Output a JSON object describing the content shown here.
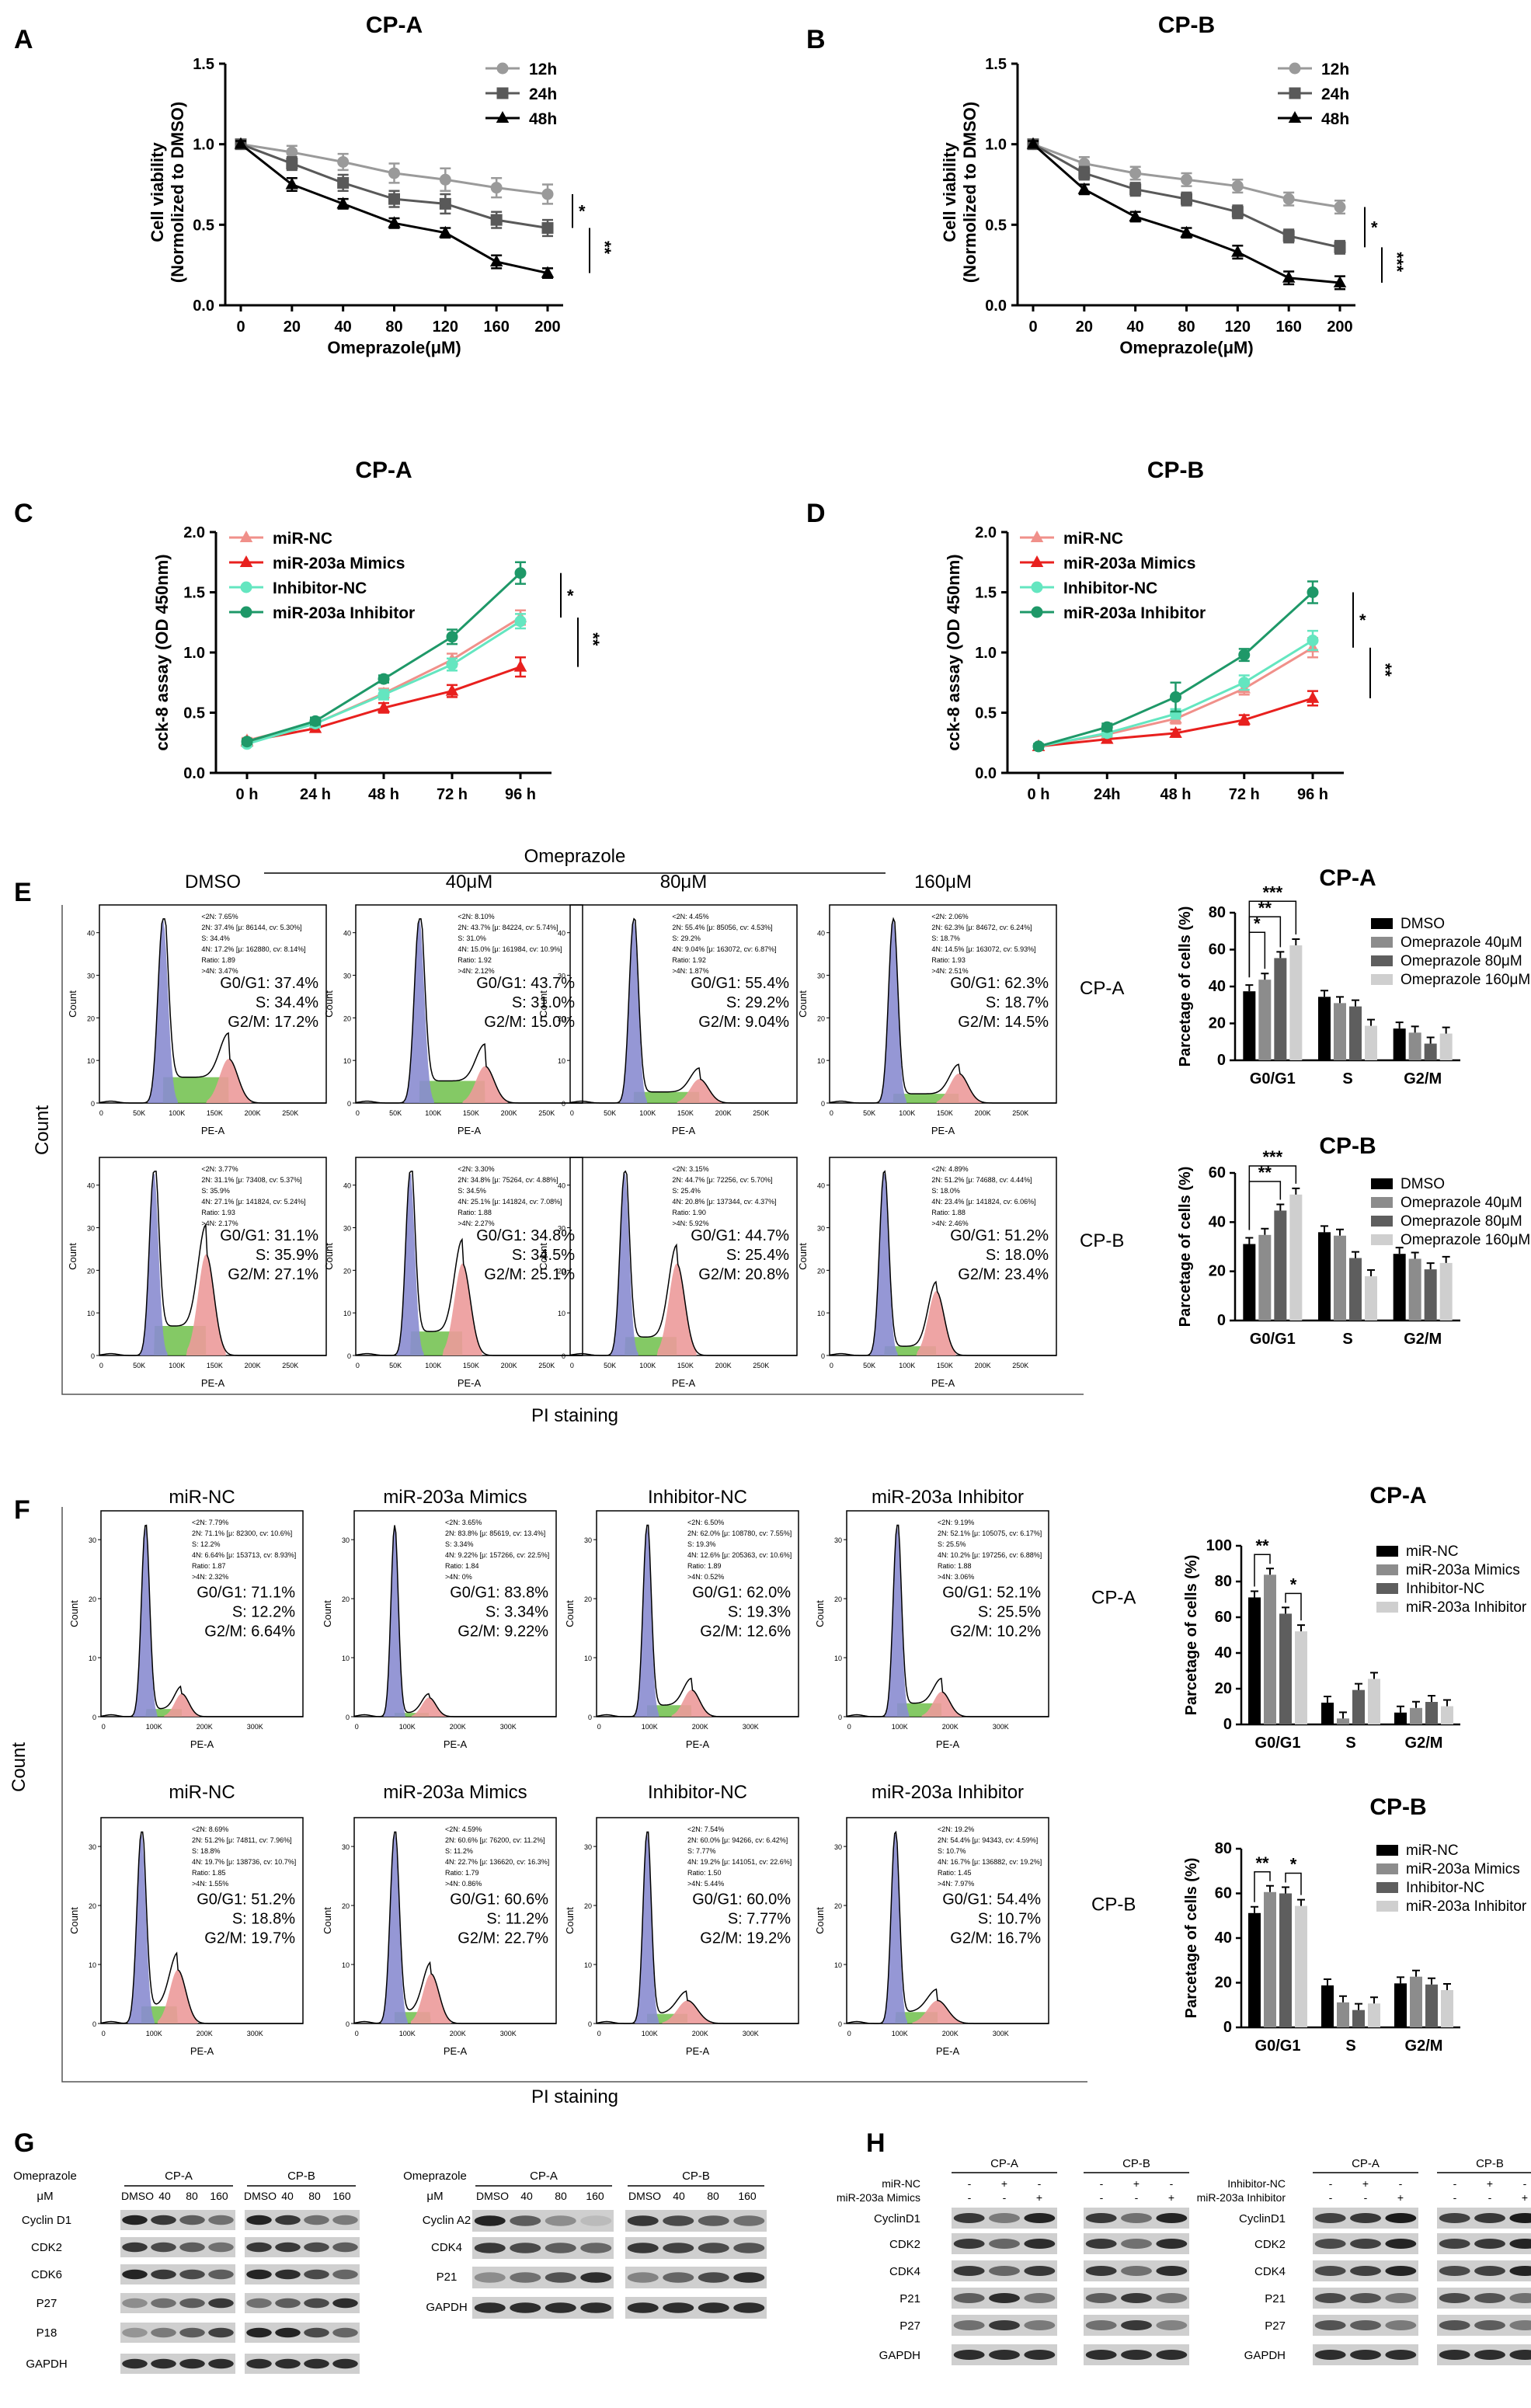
{
  "panels": {
    "A": "A",
    "B": "B",
    "C": "C",
    "D": "D",
    "E": "E",
    "F": "F",
    "G": "G",
    "H": "H"
  },
  "chart_data": [
    {
      "id": "A",
      "type": "line",
      "title": "CP-A",
      "xlabel": "Omeprazole(μM)",
      "ylabel_line1": "Cell viability",
      "ylabel_line2": "(Normolized to DMSO)",
      "categories": [
        "0",
        "20",
        "40",
        "80",
        "120",
        "160",
        "200"
      ],
      "ylim": [
        0,
        1.5
      ],
      "yticks": [
        "0.0",
        "0.5",
        "1.0",
        "1.5"
      ],
      "series": [
        {
          "name": "12h",
          "color": "#9a9a9a",
          "marker": "circle",
          "values": [
            1.0,
            0.95,
            0.89,
            0.82,
            0.78,
            0.73,
            0.69
          ],
          "err": [
            0.02,
            0.04,
            0.05,
            0.06,
            0.07,
            0.06,
            0.06
          ]
        },
        {
          "name": "24h",
          "color": "#595959",
          "marker": "square",
          "values": [
            1.0,
            0.88,
            0.76,
            0.66,
            0.63,
            0.53,
            0.48
          ],
          "err": [
            0.02,
            0.04,
            0.05,
            0.05,
            0.06,
            0.05,
            0.05
          ]
        },
        {
          "name": "48h",
          "color": "#000000",
          "marker": "triangle",
          "values": [
            1.0,
            0.75,
            0.63,
            0.51,
            0.45,
            0.27,
            0.2
          ],
          "err": [
            0.02,
            0.04,
            0.03,
            0.03,
            0.03,
            0.04,
            0.03
          ]
        }
      ],
      "sig_inner": "*",
      "sig_outer": "**"
    },
    {
      "id": "B",
      "type": "line",
      "title": "CP-B",
      "xlabel": "Omeprazole(μM)",
      "ylabel_line1": "Cell viability",
      "ylabel_line2": "(Normolized to DMSO)",
      "categories": [
        "0",
        "20",
        "40",
        "80",
        "120",
        "160",
        "200"
      ],
      "ylim": [
        0,
        1.5
      ],
      "yticks": [
        "0.0",
        "0.5",
        "1.0",
        "1.5"
      ],
      "series": [
        {
          "name": "12h",
          "color": "#9a9a9a",
          "marker": "circle",
          "values": [
            1.0,
            0.88,
            0.82,
            0.78,
            0.74,
            0.66,
            0.61
          ],
          "err": [
            0.02,
            0.04,
            0.04,
            0.04,
            0.04,
            0.04,
            0.04
          ]
        },
        {
          "name": "24h",
          "color": "#595959",
          "marker": "square",
          "values": [
            1.0,
            0.82,
            0.72,
            0.66,
            0.58,
            0.43,
            0.36
          ],
          "err": [
            0.02,
            0.04,
            0.04,
            0.04,
            0.04,
            0.04,
            0.04
          ]
        },
        {
          "name": "48h",
          "color": "#000000",
          "marker": "triangle",
          "values": [
            1.0,
            0.72,
            0.55,
            0.45,
            0.33,
            0.17,
            0.14
          ],
          "err": [
            0.02,
            0.03,
            0.03,
            0.03,
            0.04,
            0.04,
            0.04
          ]
        }
      ],
      "sig_inner": "*",
      "sig_outer": "***"
    },
    {
      "id": "C",
      "type": "line",
      "title": "CP-A",
      "xlabel": "",
      "ylabel_line1": "cck-8 assay (OD 450nm)",
      "categories": [
        "0 h",
        "24 h",
        "48 h",
        "72 h",
        "96 h"
      ],
      "ylim": [
        0,
        2.0
      ],
      "yticks": [
        "0.0",
        "0.5",
        "1.0",
        "1.5",
        "2.0"
      ],
      "series": [
        {
          "name": "miR-NC",
          "color": "#f0908a",
          "marker": "triangle",
          "values": [
            0.27,
            0.41,
            0.66,
            0.94,
            1.29
          ],
          "err": [
            0.02,
            0.03,
            0.04,
            0.05,
            0.06
          ]
        },
        {
          "name": "miR-203a Mimics",
          "color": "#e8201e",
          "marker": "triangle",
          "values": [
            0.26,
            0.37,
            0.54,
            0.68,
            0.88
          ],
          "err": [
            0.02,
            0.03,
            0.04,
            0.05,
            0.08
          ]
        },
        {
          "name": "Inhibitor-NC",
          "color": "#64e6c0",
          "marker": "circle",
          "values": [
            0.24,
            0.41,
            0.65,
            0.9,
            1.26
          ],
          "err": [
            0.02,
            0.03,
            0.04,
            0.05,
            0.06
          ]
        },
        {
          "name": "miR-203a Inhibitor",
          "color": "#1e9868",
          "marker": "circle",
          "values": [
            0.26,
            0.43,
            0.78,
            1.13,
            1.66
          ],
          "err": [
            0.02,
            0.03,
            0.03,
            0.06,
            0.09
          ]
        }
      ],
      "sig_inner": "*",
      "sig_outer": "**"
    },
    {
      "id": "D",
      "type": "line",
      "title": "CP-B",
      "xlabel": "",
      "ylabel_line1": "cck-8 assay (OD 450nm)",
      "categories": [
        "0 h",
        "24h",
        "48 h",
        "72 h",
        "96 h"
      ],
      "ylim": [
        0,
        2.0
      ],
      "yticks": [
        "0.0",
        "0.5",
        "1.0",
        "1.5",
        "2.0"
      ],
      "series": [
        {
          "name": "miR-NC",
          "color": "#f0908a",
          "marker": "triangle",
          "values": [
            0.22,
            0.32,
            0.45,
            0.7,
            1.04
          ],
          "err": [
            0.02,
            0.03,
            0.04,
            0.05,
            0.08
          ]
        },
        {
          "name": "miR-203a Mimics",
          "color": "#e8201e",
          "marker": "triangle",
          "values": [
            0.22,
            0.28,
            0.33,
            0.44,
            0.62
          ],
          "err": [
            0.02,
            0.03,
            0.03,
            0.04,
            0.06
          ]
        },
        {
          "name": "Inhibitor-NC",
          "color": "#64e6c0",
          "marker": "circle",
          "values": [
            0.22,
            0.33,
            0.49,
            0.75,
            1.1
          ],
          "err": [
            0.02,
            0.03,
            0.04,
            0.06,
            0.08
          ]
        },
        {
          "name": "miR-203a Inhibitor",
          "color": "#1e9868",
          "marker": "circle",
          "values": [
            0.22,
            0.38,
            0.63,
            0.98,
            1.5
          ],
          "err": [
            0.02,
            0.03,
            0.12,
            0.05,
            0.09
          ]
        }
      ],
      "sig_inner": "*",
      "sig_outer": "**"
    },
    {
      "id": "E-CPA",
      "type": "bar",
      "title": "CP-A",
      "ylabel": "Parcetage of cells (%)",
      "categories": [
        "G0/G1",
        "S",
        "G2/M"
      ],
      "ylim": [
        0,
        80
      ],
      "yticks": [
        "0",
        "20",
        "40",
        "60",
        "80"
      ],
      "series": [
        {
          "name": "DMSO",
          "color": "#000000",
          "values": [
            37.4,
            34.4,
            17.2
          ]
        },
        {
          "name": "Omeprazole 40μM",
          "color": "#8c8c8c",
          "values": [
            43.7,
            31.0,
            15.0
          ]
        },
        {
          "name": "Omeprazole 80μM",
          "color": "#5e5e5e",
          "values": [
            55.4,
            29.2,
            9.04
          ]
        },
        {
          "name": "Omeprazole 160μM",
          "color": "#cfcfcf",
          "values": [
            62.3,
            18.7,
            14.5
          ]
        }
      ],
      "sig": [
        "*",
        "**",
        "***"
      ]
    },
    {
      "id": "E-CPB",
      "type": "bar",
      "title": "CP-B",
      "ylabel": "Parcetage of cells (%)",
      "categories": [
        "G0/G1",
        "S",
        "G2/M"
      ],
      "ylim": [
        0,
        60
      ],
      "yticks": [
        "0",
        "20",
        "40",
        "60"
      ],
      "series": [
        {
          "name": "DMSO",
          "color": "#000000",
          "values": [
            31.1,
            35.9,
            27.1
          ]
        },
        {
          "name": "Omeprazole 40μM",
          "color": "#8c8c8c",
          "values": [
            34.8,
            34.5,
            25.1
          ]
        },
        {
          "name": "Omeprazole 80μM",
          "color": "#5e5e5e",
          "values": [
            44.7,
            25.4,
            20.8
          ]
        },
        {
          "name": "Omeprazole 160μM",
          "color": "#cfcfcf",
          "values": [
            51.2,
            18.0,
            23.4
          ]
        }
      ],
      "sig": [
        "**",
        "***"
      ]
    },
    {
      "id": "F-CPA",
      "type": "bar",
      "title": "CP-A",
      "ylabel": "Parcetage of cells (%)",
      "categories": [
        "G0/G1",
        "S",
        "G2/M"
      ],
      "ylim": [
        0,
        100
      ],
      "yticks": [
        "0",
        "20",
        "40",
        "60",
        "80",
        "100"
      ],
      "series": [
        {
          "name": "miR-NC",
          "color": "#000000",
          "values": [
            71.1,
            12.2,
            6.64
          ]
        },
        {
          "name": "miR-203a Mimics",
          "color": "#8c8c8c",
          "values": [
            83.8,
            3.34,
            9.22
          ]
        },
        {
          "name": "Inhibitor-NC",
          "color": "#5e5e5e",
          "values": [
            62.0,
            19.3,
            12.6
          ]
        },
        {
          "name": "miR-203a Inhibitor",
          "color": "#cfcfcf",
          "values": [
            52.1,
            25.5,
            10.2
          ]
        }
      ],
      "sig": [
        "**",
        "*"
      ]
    },
    {
      "id": "F-CPB",
      "type": "bar",
      "title": "CP-B",
      "ylabel": "Parcetage of cells (%)",
      "categories": [
        "G0/G1",
        "S",
        "G2/M"
      ],
      "ylim": [
        0,
        80
      ],
      "yticks": [
        "0",
        "20",
        "40",
        "60",
        "80"
      ],
      "series": [
        {
          "name": "miR-NC",
          "color": "#000000",
          "values": [
            51.2,
            18.8,
            19.7
          ]
        },
        {
          "name": "miR-203a Mimics",
          "color": "#8c8c8c",
          "values": [
            60.6,
            11.2,
            22.7
          ]
        },
        {
          "name": "Inhibitor-NC",
          "color": "#5e5e5e",
          "values": [
            60.0,
            7.77,
            19.2
          ]
        },
        {
          "name": "miR-203a Inhibitor",
          "color": "#cfcfcf",
          "values": [
            54.4,
            10.7,
            16.7
          ]
        }
      ],
      "sig": [
        "**",
        "*"
      ]
    }
  ],
  "flow": {
    "E": {
      "group_label": "Omeprazole",
      "cols": [
        "DMSO",
        "40μM",
        "80μM",
        "160μM"
      ],
      "rows": [
        "CP-A",
        "CP-B"
      ],
      "count_label": "Count",
      "xlabel": "PE-A",
      "staining": "PI staining",
      "xticks": [
        "0",
        "50K",
        "100K",
        "150K",
        "200K",
        "250K"
      ],
      "stats": [
        [
          "G0/G1: 37.4%",
          "S: 34.4%",
          "G2/M: 17.2%"
        ],
        [
          "G0/G1: 43.7%",
          "S: 31.0%",
          "G2/M: 15.0%"
        ],
        [
          "G0/G1: 55.4%",
          "S: 29.2%",
          "G2/M: 9.04%"
        ],
        [
          "G0/G1: 62.3%",
          "S: 18.7%",
          "G2/M: 14.5%"
        ],
        [
          "G0/G1: 31.1%",
          "S: 35.9%",
          "G2/M: 27.1%"
        ],
        [
          "G0/G1: 34.8%",
          "S: 34.5%",
          "G2/M: 25.1%"
        ],
        [
          "G0/G1: 44.7%",
          "S: 25.4%",
          "G2/M: 20.8%"
        ],
        [
          "G0/G1: 51.2%",
          "S: 18.0%",
          "G2/M: 23.4%"
        ]
      ],
      "smallstats": [
        [
          "<2N: 7.65%",
          "2N: 37.4% [μ: 86144, cv: 5.30%]",
          "S: 34.4%",
          "4N: 17.2% [μ: 162880, cv: 8.14%]",
          "Ratio: 1.89",
          ">4N: 3.47%"
        ],
        [
          "<2N: 8.10%",
          "2N: 43.7% [μ: 84224, cv: 5.74%]",
          "S: 31.0%",
          "4N: 15.0% [μ: 161984, cv: 10.9%]",
          "Ratio: 1.92",
          ">4N: 2.12%"
        ],
        [
          "<2N: 4.45%",
          "2N: 55.4% [μ: 85056, cv: 4.53%]",
          "S: 29.2%",
          "4N: 9.04% [μ: 163072, cv: 6.87%]",
          "Ratio: 1.92",
          ">4N: 1.87%"
        ],
        [
          "<2N: 2.06%",
          "2N: 62.3% [μ: 84672, cv: 6.24%]",
          "S: 18.7%",
          "4N: 14.5% [μ: 163072, cv: 5.93%]",
          "Ratio: 1.93",
          ">4N: 2.51%"
        ],
        [
          "<2N: 3.77%",
          "2N: 31.1% [μ: 73408, cv: 5.37%]",
          "S: 35.9%",
          "4N: 27.1% [μ: 141824, cv: 5.24%]",
          "Ratio: 1.93",
          ">4N: 2.17%"
        ],
        [
          "<2N: 3.30%",
          "2N: 34.8% [μ: 75264, cv: 4.88%]",
          "S: 34.5%",
          "4N: 25.1% [μ: 141824, cv: 7.08%]",
          "Ratio: 1.88",
          ">4N: 2.27%"
        ],
        [
          "<2N: 3.15%",
          "2N: 44.7% [μ: 72256, cv: 5.70%]",
          "S: 25.4%",
          "4N: 20.8% [μ: 137344, cv: 4.37%]",
          "Ratio: 1.90",
          ">4N: 5.92%"
        ],
        [
          "<2N: 4.89%",
          "2N: 51.2% [μ: 74688, cv: 4.44%]",
          "S: 18.0%",
          "4N: 23.4% [μ: 141824, cv: 6.06%]",
          "Ratio: 1.88",
          ">4N: 2.46%"
        ]
      ]
    },
    "F": {
      "cols": [
        "miR-NC",
        "miR-203a Mimics",
        "Inhibitor-NC",
        "miR-203a Inhibitor"
      ],
      "rows": [
        "CP-A",
        "CP-B"
      ],
      "count_label": "Count",
      "xlabel": "PE-A",
      "staining": "PI staining",
      "xticks": [
        "0",
        "100K",
        "200K",
        "300K"
      ],
      "stats": [
        [
          "G0/G1: 71.1%",
          "S: 12.2%",
          "G2/M: 6.64%"
        ],
        [
          "G0/G1: 83.8%",
          "S: 3.34%",
          "G2/M: 9.22%"
        ],
        [
          "G0/G1: 62.0%",
          "S: 19.3%",
          "G2/M: 12.6%"
        ],
        [
          "G0/G1: 52.1%",
          "S: 25.5%",
          "G2/M: 10.2%"
        ],
        [
          "G0/G1: 51.2%",
          "S: 18.8%",
          "G2/M: 19.7%"
        ],
        [
          "G0/G1: 60.6%",
          "S: 11.2%",
          "G2/M: 22.7%"
        ],
        [
          "G0/G1: 60.0%",
          "S: 7.77%",
          "G2/M: 19.2%"
        ],
        [
          "G0/G1: 54.4%",
          "S: 10.7%",
          "G2/M: 16.7%"
        ]
      ],
      "smallstats": [
        [
          "<2N: 7.79%",
          "2N: 71.1% [μ: 82300, cv: 10.6%]",
          "S: 12.2%",
          "4N: 6.64% [μ: 153713, cv: 8.93%]",
          "Ratio: 1.87",
          ">4N: 2.32%"
        ],
        [
          "<2N: 3.65%",
          "2N: 83.8% [μ: 85619, cv: 13.4%]",
          "S: 3.34%",
          "4N: 9.22% [μ: 157266, cv: 22.5%]",
          "Ratio: 1.84",
          ">4N: 0%"
        ],
        [
          "<2N: 6.50%",
          "2N: 62.0% [μ: 108780, cv: 7.55%]",
          "S: 19.3%",
          "4N: 12.6% [μ: 205363, cv: 10.6%]",
          "Ratio: 1.89",
          ">4N: 0.52%"
        ],
        [
          "<2N: 9.19%",
          "2N: 52.1% [μ: 105075, cv: 6.17%]",
          "S: 25.5%",
          "4N: 10.2% [μ: 197256, cv: 6.88%]",
          "Ratio: 1.88",
          ">4N: 3.06%"
        ],
        [
          "<2N: 8.69%",
          "2N: 51.2% [μ: 74811, cv: 7.96%]",
          "S: 18.8%",
          "4N: 19.7% [μ: 138736, cv: 10.7%]",
          "Ratio: 1.85",
          ">4N: 1.55%"
        ],
        [
          "<2N: 4.59%",
          "2N: 60.6% [μ: 76200, cv: 11.2%]",
          "S: 11.2%",
          "4N: 22.7% [μ: 136620, cv: 16.3%]",
          "Ratio: 1.79",
          ">4N: 0.86%"
        ],
        [
          "<2N: 7.54%",
          "2N: 60.0% [μ: 94266, cv: 6.42%]",
          "S: 7.77%",
          "4N: 19.2% [μ: 141051, cv: 22.6%]",
          "Ratio: 1.50",
          ">4N: 5.44%"
        ],
        [
          "<2N: 19.2%",
          "2N: 54.4% [μ: 94343, cv: 4.59%]",
          "S: 10.7%",
          "4N: 16.7% [μ: 136882, cv: 19.2%]",
          "Ratio: 1.45",
          ">4N: 7.97%"
        ]
      ]
    }
  },
  "western": {
    "G": {
      "treatment": "Omeprazole",
      "unit": "μM",
      "lanes": [
        "DMSO",
        "40",
        "80",
        "160"
      ],
      "cells": [
        "CP-A",
        "CP-B"
      ],
      "left_proteins": [
        "Cyclin D1",
        "CDK2",
        "CDK6",
        "P27",
        "P18",
        "GAPDH"
      ],
      "right_proteins": [
        "Cyclin A2",
        "CDK4",
        "P21",
        "GAPDH"
      ]
    },
    "H": {
      "cells": [
        "CP-A",
        "CP-B"
      ],
      "left_rows": [
        "miR-NC",
        "miR-203a Mimics"
      ],
      "left_signs": [
        [
          "-",
          "+",
          "-"
        ],
        [
          "-",
          "-",
          "+"
        ]
      ],
      "left_proteins": [
        "CyclinD1",
        "CDK2",
        "CDK4",
        "P21",
        "P27",
        "GAPDH"
      ],
      "right_rows": [
        "Inhibitor-NC",
        "miR-203a Inhibitor"
      ],
      "right_signs": [
        [
          "-",
          "+",
          "-"
        ],
        [
          "-",
          "-",
          "+"
        ]
      ],
      "right_proteins": [
        "CyclinD1",
        "CDK2",
        "CDK4",
        "P21",
        "P27",
        "GAPDH"
      ]
    }
  }
}
